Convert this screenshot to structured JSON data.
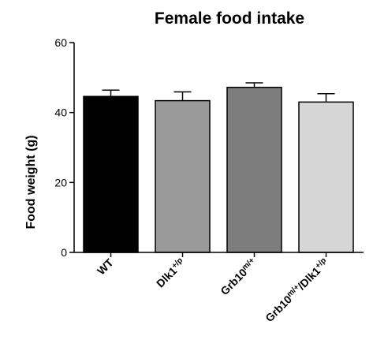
{
  "chart_data": {
    "type": "bar",
    "title": "Female food intake",
    "xlabel": "",
    "ylabel": "Food weight (g)",
    "ylim": [
      0,
      60
    ],
    "yticks": [
      0,
      20,
      40,
      60
    ],
    "grid": false,
    "legend": "none",
    "categories": [
      "WT",
      "Dlk1+/p",
      "Grb10m/+",
      "Grb10m/+/Dlk1+/p"
    ],
    "category_parts": [
      [
        {
          "t": "WT",
          "sup": false
        }
      ],
      [
        {
          "t": "Dlk1",
          "sup": false
        },
        {
          "t": "+/p",
          "sup": true
        }
      ],
      [
        {
          "t": "Grb10",
          "sup": false
        },
        {
          "t": "m/+",
          "sup": true
        }
      ],
      [
        {
          "t": "Grb10",
          "sup": false
        },
        {
          "t": "m/+",
          "sup": true
        },
        {
          "t": "/Dlk1",
          "sup": false
        },
        {
          "t": "+/p",
          "sup": true
        }
      ]
    ],
    "values": [
      44.6,
      43.4,
      47.2,
      43.0
    ],
    "errors": [
      1.8,
      2.5,
      1.3,
      2.4
    ],
    "colors": [
      "#000000",
      "#9a9a9a",
      "#7d7d7d",
      "#d6d6d6"
    ]
  }
}
